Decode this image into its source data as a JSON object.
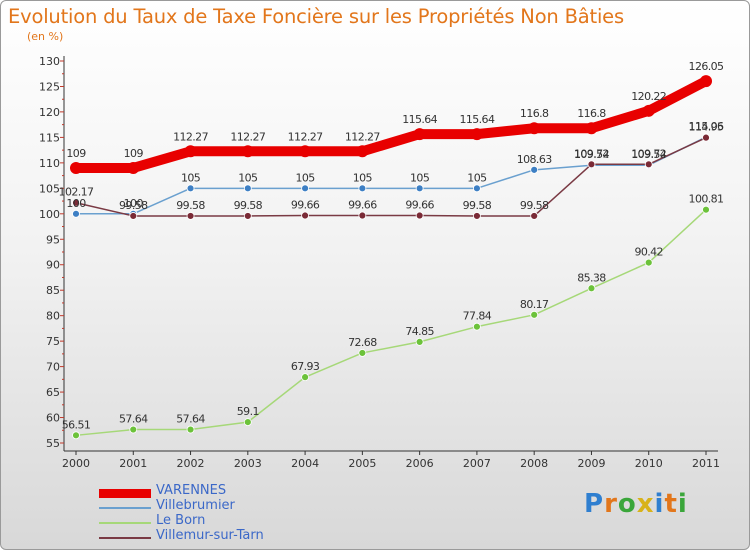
{
  "header": {
    "title": "Evolution du Taux de Taxe Foncière sur les Propriétés Non Bâties",
    "subtitle": "(en %)"
  },
  "logo": {
    "text": "Proxiti",
    "letters": [
      "P",
      "r",
      "o",
      "x",
      "i",
      "t",
      "i"
    ],
    "colors": [
      "#2f7fd0",
      "#e2761b",
      "#3aa63a",
      "#d8b21a",
      "#2f7fd0",
      "#e2761b",
      "#3aa63a"
    ]
  },
  "colors": {
    "title": "#e2761b",
    "legend_text": "#3b68c8"
  },
  "chart_data": {
    "type": "line",
    "title": "Evolution du Taux de Taxe Foncière sur les Propriétés Non Bâties",
    "ylabel": "(en %)",
    "xlabel": "",
    "ylim": [
      55,
      130
    ],
    "yticks": [
      55,
      60,
      65,
      70,
      75,
      80,
      85,
      90,
      95,
      100,
      105,
      110,
      115,
      120,
      125,
      130
    ],
    "grid": false,
    "legend_position": "bottom-left",
    "categories": [
      "2000",
      "2001",
      "2002",
      "2003",
      "2004",
      "2005",
      "2006",
      "2007",
      "2008",
      "2009",
      "2010",
      "2011"
    ],
    "series": [
      {
        "name": "VARENNES",
        "color": "#e80000",
        "width": 10,
        "marker_r": 6,
        "values": [
          109,
          109,
          112.27,
          112.27,
          112.27,
          112.27,
          115.64,
          115.64,
          116.8,
          116.8,
          120.22,
          126.05
        ],
        "labels": [
          "109",
          "109",
          "112.27",
          "112.27",
          "112.27",
          "112.27",
          "115.64",
          "115.64",
          "116.8",
          "116.8",
          "120.22",
          "126.05"
        ]
      },
      {
        "name": "Villebrumier",
        "color": "#6aa0cf",
        "marker_color": "#3d7fc4",
        "width": 1.5,
        "marker_r": 3.5,
        "values": [
          100,
          100,
          105,
          105,
          105,
          105,
          105,
          105,
          108.63,
          109.54,
          109.54,
          115.06
        ],
        "labels": [
          "100",
          "100",
          "105",
          "105",
          "105",
          "105",
          "105",
          "105",
          "108.63",
          "109.54",
          "109.54",
          "115.06"
        ]
      },
      {
        "name": "Le Born",
        "color": "#a6d878",
        "marker_color": "#6cc23a",
        "width": 1.5,
        "marker_r": 3.5,
        "values": [
          56.51,
          57.64,
          57.64,
          59.1,
          67.93,
          72.68,
          74.85,
          77.84,
          80.17,
          85.38,
          90.42,
          100.81
        ],
        "labels": [
          "56.51",
          "57.64",
          "57.64",
          "59.1",
          "67.93",
          "72.68",
          "74.85",
          "77.84",
          "80.17",
          "85.38",
          "90.42",
          "100.81"
        ]
      },
      {
        "name": "Villemur-sur-Tarn",
        "color": "#7a3a44",
        "marker_color": "#7a2a36",
        "width": 1.5,
        "marker_r": 3.5,
        "values": [
          102.17,
          99.58,
          99.58,
          99.58,
          99.66,
          99.66,
          99.66,
          99.58,
          99.58,
          109.72,
          109.72,
          114.95
        ],
        "labels": [
          "102.17",
          "99.58",
          "99.58",
          "99.58",
          "99.66",
          "99.66",
          "99.66",
          "99.58",
          "99.58",
          "109.72",
          "109.72",
          "114.95"
        ]
      }
    ]
  }
}
